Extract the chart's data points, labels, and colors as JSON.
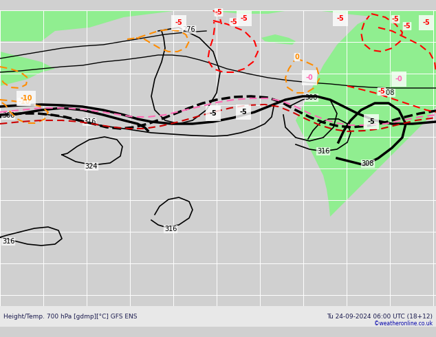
{
  "title_bottom": "Height/Temp. 700 hPa [gdmp][°C] GFS ENS",
  "title_right": "Tu 24-09-2024 06:00 UTC (18+12)",
  "copyright": "©weatheronline.co.uk",
  "bg_ocean": "#d3d3d3",
  "bg_land": "#90ee90",
  "grid_color": "#ffffff",
  "bottom_bar_color": "#e8e8e8"
}
